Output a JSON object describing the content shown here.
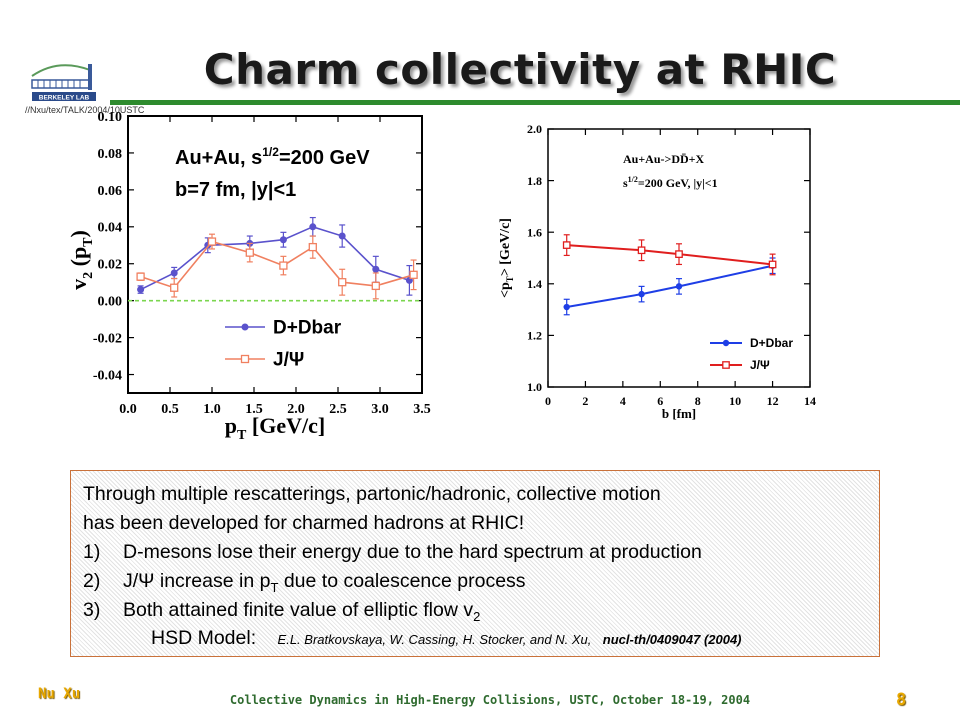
{
  "slide": {
    "title": "Charm collectivity at RHIC",
    "path_text": "//Nxu/tex/TALK/2004/10USTC",
    "footer_author": "Nu Xu",
    "footer_talk": "Collective Dynamics in High-Energy Collisions, USTC, October 18-19, 2004",
    "page_number": "8",
    "colors": {
      "title_rule": "#2e8b2e",
      "textbox_border": "#c9713a",
      "footer_accent": "#e8a800",
      "footer_talk": "#2f6b2f"
    }
  },
  "logo": {
    "name": "berkeley-lab-logo",
    "text": "BERKELEY LAB"
  },
  "chart_data": [
    {
      "type": "line",
      "annotations": [
        "Au+Au, s",
        "1/2",
        "=200 GeV",
        "b=7 fm, |y|<1"
      ],
      "xlabel": "p",
      "xlabel_sub": "T",
      "xlabel_unit": " [GeV/c]",
      "ylabel": "v",
      "ylabel_sub": "2",
      "ylabel_mid": " (p",
      "ylabel_sub2": "T",
      "ylabel_end": ")",
      "xlim": [
        0.0,
        3.5
      ],
      "ylim": [
        -0.05,
        0.1
      ],
      "xticks": [
        "0.0",
        "0.5",
        "1.0",
        "1.5",
        "2.0",
        "2.5",
        "3.0",
        "3.5"
      ],
      "yticks": [
        "-0.04",
        "-0.02",
        "0.00",
        "0.02",
        "0.04",
        "0.06",
        "0.08",
        "0.10"
      ],
      "reference_line_y": 0.0,
      "series": [
        {
          "name": "D+Dbar",
          "color": "#5a52cc",
          "marker": "circle",
          "x": [
            0.15,
            0.55,
            0.95,
            1.45,
            1.85,
            2.2,
            2.55,
            2.95,
            3.35
          ],
          "y": [
            0.006,
            0.015,
            0.03,
            0.031,
            0.033,
            0.04,
            0.035,
            0.017,
            0.011
          ],
          "err": [
            0.002,
            0.003,
            0.004,
            0.004,
            0.004,
            0.005,
            0.006,
            0.007,
            0.008
          ]
        },
        {
          "name": "J/Ψ",
          "color": "#f08060",
          "marker": "square",
          "x": [
            0.15,
            0.55,
            1.0,
            1.45,
            1.85,
            2.2,
            2.55,
            2.95,
            3.4
          ],
          "y": [
            0.013,
            0.007,
            0.032,
            0.026,
            0.019,
            0.029,
            0.01,
            0.008,
            0.014
          ],
          "err": [
            0.002,
            0.005,
            0.004,
            0.005,
            0.005,
            0.006,
            0.007,
            0.007,
            0.008
          ]
        }
      ]
    },
    {
      "type": "line",
      "annotations": [
        "Au+Au->DD̄+X",
        "s",
        "1/2",
        "=200 GeV, |y|<1"
      ],
      "xlabel": "b [fm]",
      "ylabel": "<p",
      "ylabel_sub": "T",
      "ylabel_end": "> [GeV/c]",
      "xlim": [
        0,
        14
      ],
      "ylim": [
        1.0,
        2.0
      ],
      "xticks": [
        "0",
        "2",
        "4",
        "6",
        "8",
        "10",
        "12",
        "14"
      ],
      "yticks": [
        "1.0",
        "1.2",
        "1.4",
        "1.6",
        "1.8",
        "2.0"
      ],
      "series": [
        {
          "name": "D+Dbar",
          "color": "#1e3ee6",
          "marker": "circle",
          "x": [
            1,
            5,
            7,
            12
          ],
          "y": [
            1.31,
            1.36,
            1.39,
            1.47
          ],
          "err": [
            0.03,
            0.03,
            0.03,
            0.03
          ]
        },
        {
          "name": "J/Ψ",
          "color": "#e01e1e",
          "marker": "square",
          "x": [
            1,
            5,
            7,
            12
          ],
          "y": [
            1.55,
            1.53,
            1.515,
            1.475
          ],
          "err": [
            0.04,
            0.04,
            0.04,
            0.04
          ]
        }
      ]
    }
  ],
  "text_box": {
    "line1": "Through multiple rescatterings, partonic/hadronic, collective motion",
    "line2": "has been developed for charmed hadrons at RHIC!",
    "item1_num": "1)",
    "item1": "D-mesons lose their energy due to the hard spectrum at production",
    "item2_num": "2)",
    "item2_a": "J/Ψ increase in p",
    "item2_sub": "T",
    "item2_b": " due to coalescence process",
    "item3_num": "3)",
    "item3": "Both attained finite value of elliptic flow v",
    "item3_sub": "2",
    "model_label": "HSD Model:",
    "model_authors": "E.L. Bratkovskaya, W. Cassing, H. Stocker, and N. Xu,",
    "model_ref": "nucl-th/0409047 (2004)"
  }
}
